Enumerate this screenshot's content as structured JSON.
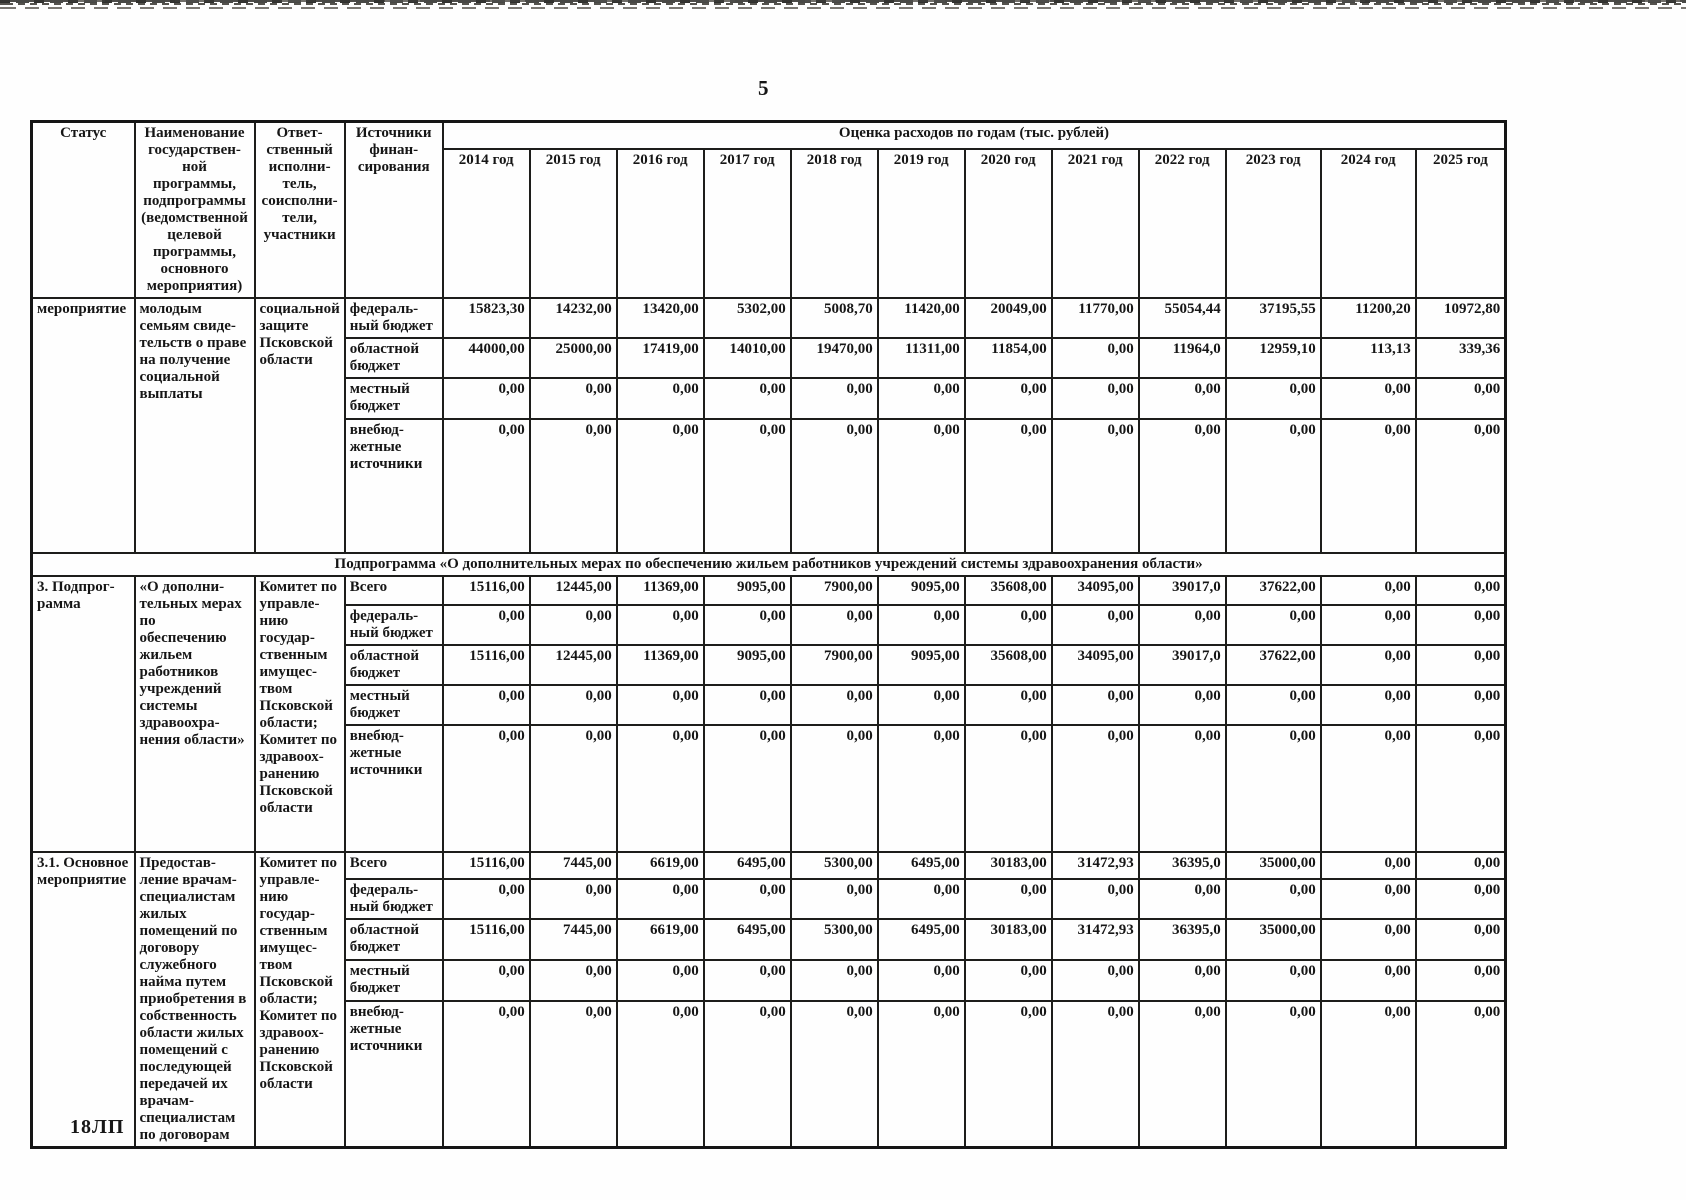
{
  "page": {
    "number": "5",
    "footer_code": "18ЛП"
  },
  "table": {
    "span_header": "Оценка расходов по годам (тыс. рублей)",
    "columns": {
      "status": "Статус",
      "program": "Наименование\nгосударствен-\nной\nпрограммы,\nподпрограммы\n(ведомственной\nцелевой\nпрограммы,\nосновного\nмероприятия)",
      "executor": "Ответ-\nственный\nисполни-\nтель,\nсоисполни-\nтели,\nучастники",
      "source": "Источники\nфинан-\nсирования"
    },
    "years": [
      "2014 год",
      "2015 год",
      "2016 год",
      "2017 год",
      "2018 год",
      "2019 год",
      "2020 год",
      "2021 год",
      "2022 год",
      "2023 год",
      "2024 год",
      "2025 год"
    ],
    "sections": [
      {
        "status": "мероприятие",
        "program": "молодым\nсемьям свиде-\nтельств о праве\nна получение\nсоциальной\nвыплаты",
        "executor": "социальной\nзащите\nПсковской\nобласти",
        "rows": [
          {
            "source": "федераль-\nный бюджет",
            "values": [
              "15823,30",
              "14232,00",
              "13420,00",
              "5302,00",
              "5008,70",
              "11420,00",
              "20049,00",
              "11770,00",
              "55054,44",
              "37195,55",
              "11200,20",
              "10972,80"
            ]
          },
          {
            "source": "областной\nбюджет",
            "values": [
              "44000,00",
              "25000,00",
              "17419,00",
              "14010,00",
              "19470,00",
              "11311,00",
              "11854,00",
              "0,00",
              "11964,0",
              "12959,10",
              "113,13",
              "339,36"
            ]
          },
          {
            "source": "местный\nбюджет",
            "values": [
              "0,00",
              "0,00",
              "0,00",
              "0,00",
              "0,00",
              "0,00",
              "0,00",
              "0,00",
              "0,00",
              "0,00",
              "0,00",
              "0,00"
            ]
          },
          {
            "source": "внебюд-\nжетные\nисточники",
            "values": [
              "0,00",
              "0,00",
              "0,00",
              "0,00",
              "0,00",
              "0,00",
              "0,00",
              "0,00",
              "0,00",
              "0,00",
              "0,00",
              "0,00"
            ]
          }
        ]
      },
      {
        "band": "Подпрограмма «О дополнительных мерах по обеспечению жильем работников учреждений системы здравоохранения области»"
      },
      {
        "status": "3. Подпрог-\nрамма",
        "program": "«О дополни-\nтельных мерах\nпо\nобеспечению\nжильем\nработников\nучреждений\nсистемы\nздравоохра-\nнения области»",
        "executor": "Комитет по\nуправле-\nнию\nгосудар-\nственным\nимущес-\nтвом\nПсковской\nобласти;\nКомитет по\nздравоох-\nранению\nПсковской\nобласти",
        "rows": [
          {
            "source": "Всего",
            "values": [
              "15116,00",
              "12445,00",
              "11369,00",
              "9095,00",
              "7900,00",
              "9095,00",
              "35608,00",
              "34095,00",
              "39017,0",
              "37622,00",
              "0,00",
              "0,00"
            ]
          },
          {
            "source": "федераль-\nный бюджет",
            "values": [
              "0,00",
              "0,00",
              "0,00",
              "0,00",
              "0,00",
              "0,00",
              "0,00",
              "0,00",
              "0,00",
              "0,00",
              "0,00",
              "0,00"
            ]
          },
          {
            "source": "областной\nбюджет",
            "values": [
              "15116,00",
              "12445,00",
              "11369,00",
              "9095,00",
              "7900,00",
              "9095,00",
              "35608,00",
              "34095,00",
              "39017,0",
              "37622,00",
              "0,00",
              "0,00"
            ]
          },
          {
            "source": "местный\nбюджет",
            "values": [
              "0,00",
              "0,00",
              "0,00",
              "0,00",
              "0,00",
              "0,00",
              "0,00",
              "0,00",
              "0,00",
              "0,00",
              "0,00",
              "0,00"
            ]
          },
          {
            "source": "внебюд-\nжетные\nисточники",
            "values": [
              "0,00",
              "0,00",
              "0,00",
              "0,00",
              "0,00",
              "0,00",
              "0,00",
              "0,00",
              "0,00",
              "0,00",
              "0,00",
              "0,00"
            ]
          }
        ]
      },
      {
        "status": "3.1. Основное\nмероприятие",
        "program": "Предостав-\nление врачам-\nспециалистам\nжилых\nпомещений по\nдоговору\nслужебного\nнайма путем\nприобретения в\nсобственность\nобласти жилых\nпомещений с\nпоследующей\nпередачей их\nврачам-\nспециалистам\nпо договорам",
        "executor": "Комитет по\nуправле-\nнию\nгосудар-\nственным\nимущес-\nтвом\nПсковской\nобласти;\nКомитет по\nздравоох-\nранению\nПсковской\nобласти",
        "rows": [
          {
            "source": "Всего",
            "values": [
              "15116,00",
              "7445,00",
              "6619,00",
              "6495,00",
              "5300,00",
              "6495,00",
              "30183,00",
              "31472,93",
              "36395,0",
              "35000,00",
              "0,00",
              "0,00"
            ]
          },
          {
            "source": "федераль-\nный бюджет",
            "values": [
              "0,00",
              "0,00",
              "0,00",
              "0,00",
              "0,00",
              "0,00",
              "0,00",
              "0,00",
              "0,00",
              "0,00",
              "0,00",
              "0,00"
            ]
          },
          {
            "source": "областной\nбюджет",
            "values": [
              "15116,00",
              "7445,00",
              "6619,00",
              "6495,00",
              "5300,00",
              "6495,00",
              "30183,00",
              "31472,93",
              "36395,0",
              "35000,00",
              "0,00",
              "0,00"
            ]
          },
          {
            "source": "местный\nбюджет",
            "values": [
              "0,00",
              "0,00",
              "0,00",
              "0,00",
              "0,00",
              "0,00",
              "0,00",
              "0,00",
              "0,00",
              "0,00",
              "0,00",
              "0,00"
            ]
          },
          {
            "source": "внебюд-\nжетные\nисточники",
            "values": [
              "0,00",
              "0,00",
              "0,00",
              "0,00",
              "0,00",
              "0,00",
              "0,00",
              "0,00",
              "0,00",
              "0,00",
              "0,00",
              "0,00"
            ]
          }
        ]
      }
    ]
  }
}
